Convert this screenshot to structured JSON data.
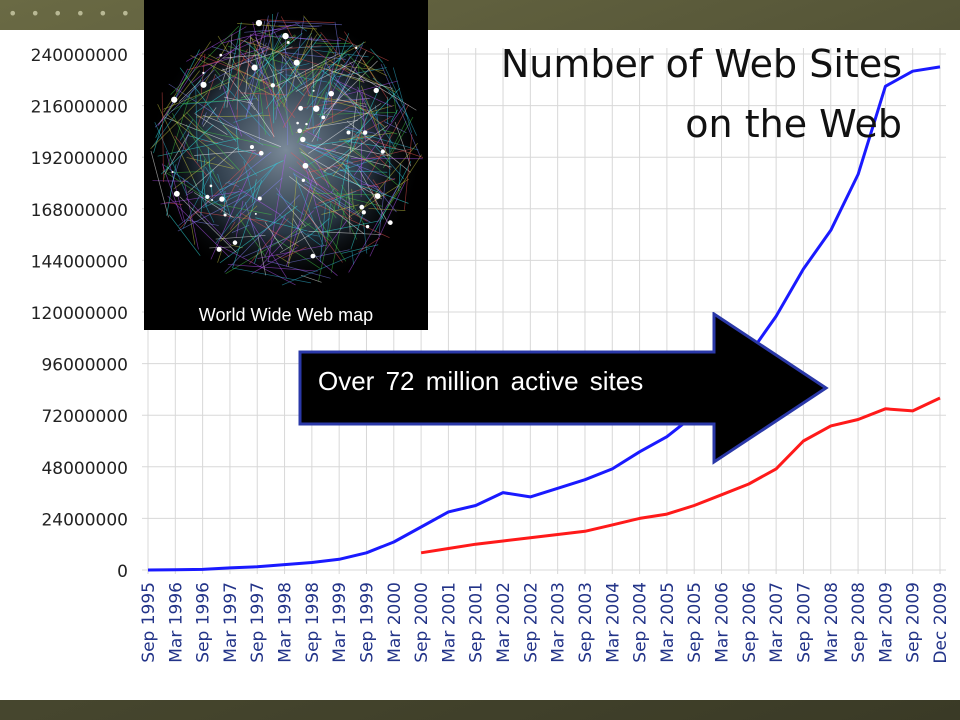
{
  "title_line1": "Number of Web Sites",
  "title_line2": "on the Web",
  "image_caption": "World Wide Web map",
  "callout": "Over 72 million active sites",
  "colors": {
    "series_total": "#1a1aff",
    "series_active": "#ff1a1a",
    "grid": "#d8d8d8",
    "arrow_fill": "#000000",
    "arrow_stroke": "#2a38a8",
    "background": "#545437"
  },
  "chart_data": {
    "type": "line",
    "title": "Number of Web Sites on the Web",
    "xlabel": "",
    "ylabel": "",
    "ylim": [
      0,
      240000000
    ],
    "y_ticks": [
      0,
      24000000,
      48000000,
      72000000,
      96000000,
      120000000,
      144000000,
      168000000,
      192000000,
      216000000,
      240000000
    ],
    "y_tick_labels": [
      "0",
      "24000000",
      "48000000",
      "72000000",
      "96000000",
      "120000000",
      "144000000",
      "168000000",
      "192000000",
      "216000000",
      "240000000"
    ],
    "x_tick_labels": [
      "Sep 1995",
      "Mar 1996",
      "Sep 1996",
      "Mar 1997",
      "Sep 1997",
      "Mar 1998",
      "Sep 1998",
      "Mar 1999",
      "Sep 1999",
      "Mar 2000",
      "Sep 2000",
      "Mar 2001",
      "Sep 2001",
      "Mar 2002",
      "Sep 2002",
      "Mar 2003",
      "Sep 2003",
      "Mar 2004",
      "Sep 2004",
      "Mar 2005",
      "Sep 2005",
      "Mar 2006",
      "Sep 2006",
      "Mar 2007",
      "Sep 2007",
      "Mar 2008",
      "Sep 2008",
      "Mar 2009",
      "Sep 2009",
      "Dec 2009"
    ],
    "grid": true,
    "series": [
      {
        "color": "#1a1aff",
        "x": [
          "Sep 1995",
          "Mar 1996",
          "Sep 1996",
          "Mar 1997",
          "Sep 1997",
          "Mar 1998",
          "Sep 1998",
          "Mar 1999",
          "Sep 1999",
          "Mar 2000",
          "Sep 2000",
          "Mar 2001",
          "Sep 2001",
          "Mar 2002",
          "Sep 2002",
          "Mar 2003",
          "Sep 2003",
          "Mar 2004",
          "Sep 2004",
          "Mar 2005",
          "Sep 2005",
          "Mar 2006",
          "Sep 2006",
          "Mar 2007",
          "Sep 2007",
          "Mar 2008",
          "Sep 2008",
          "Mar 2009",
          "Sep 2009",
          "Dec 2009"
        ],
        "values": [
          20000,
          100000,
          300000,
          1000000,
          1500000,
          2500000,
          3500000,
          5000000,
          8000000,
          13000000,
          20000000,
          27000000,
          30000000,
          36000000,
          34000000,
          38000000,
          42000000,
          47000000,
          55000000,
          62000000,
          72000000,
          90000000,
          100000000,
          118000000,
          140000000,
          158000000,
          184000000,
          225000000,
          232000000,
          234000000
        ]
      },
      {
        "color": "#ff1a1a",
        "x": [
          "Sep 2000",
          "Mar 2001",
          "Sep 2001",
          "Mar 2002",
          "Sep 2002",
          "Mar 2003",
          "Sep 2003",
          "Mar 2004",
          "Sep 2004",
          "Mar 2005",
          "Sep 2005",
          "Mar 2006",
          "Sep 2006",
          "Mar 2007",
          "Sep 2007",
          "Mar 2008",
          "Sep 2008",
          "Mar 2009",
          "Sep 2009",
          "Dec 2009"
        ],
        "values": [
          8000000,
          10000000,
          12000000,
          13500000,
          15000000,
          16500000,
          18000000,
          21000000,
          24000000,
          26000000,
          30000000,
          35000000,
          40000000,
          47000000,
          60000000,
          67000000,
          70000000,
          75000000,
          74000000,
          80000000
        ]
      }
    ]
  }
}
